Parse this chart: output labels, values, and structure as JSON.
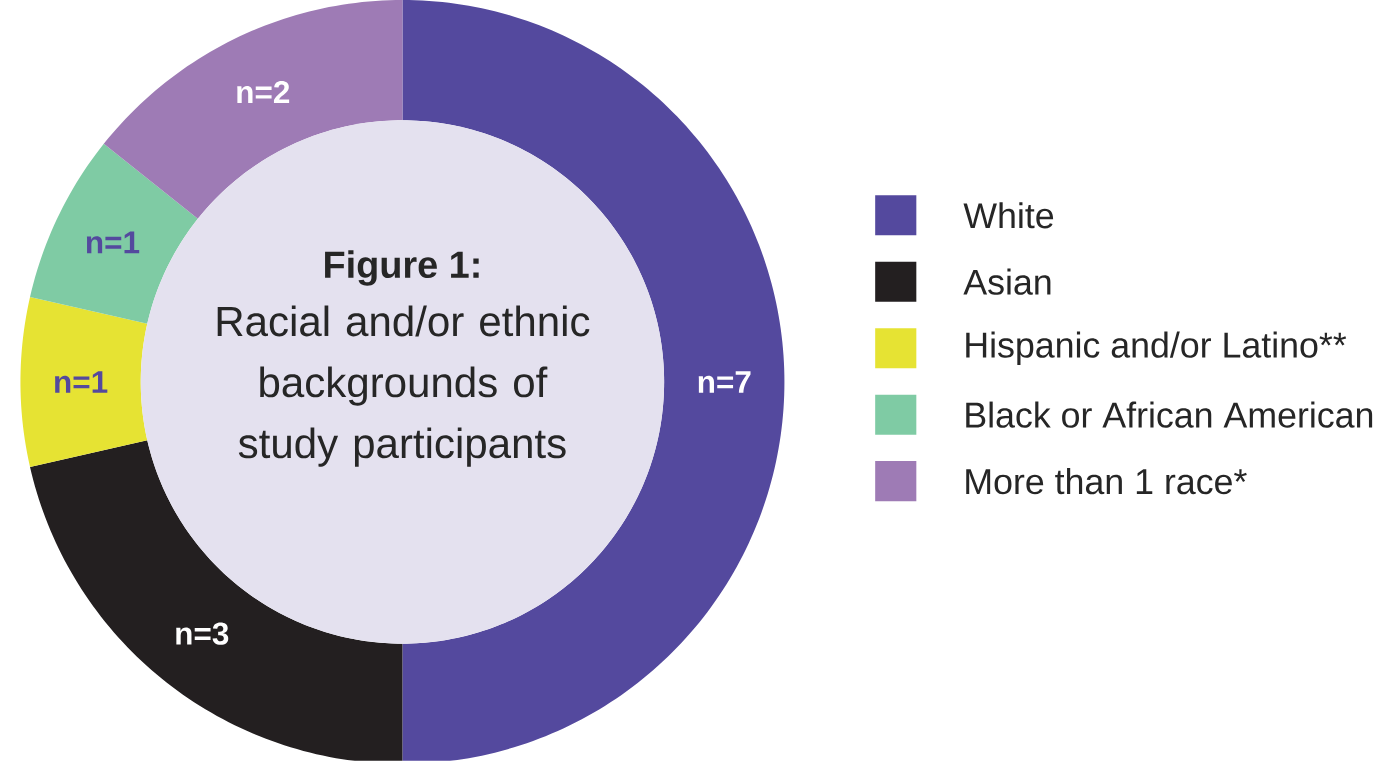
{
  "chart_data": {
    "type": "donut",
    "title": "Figure 1:",
    "subtitle": "Racial and/or ethnic backgrounds of study participants",
    "categories": [
      "White",
      "Asian",
      "Hispanic and/or Latino**",
      "Black or African American",
      "More than 1 race*"
    ],
    "values": [
      7,
      3,
      1,
      1,
      2
    ],
    "value_labels": [
      "n=7",
      "n=3",
      "n=1",
      "n=1",
      "n=2"
    ],
    "colors": [
      "#54499e",
      "#231f20",
      "#e6e333",
      "#7fcba4",
      "#9e7bb5"
    ],
    "legend": "right"
  }
}
